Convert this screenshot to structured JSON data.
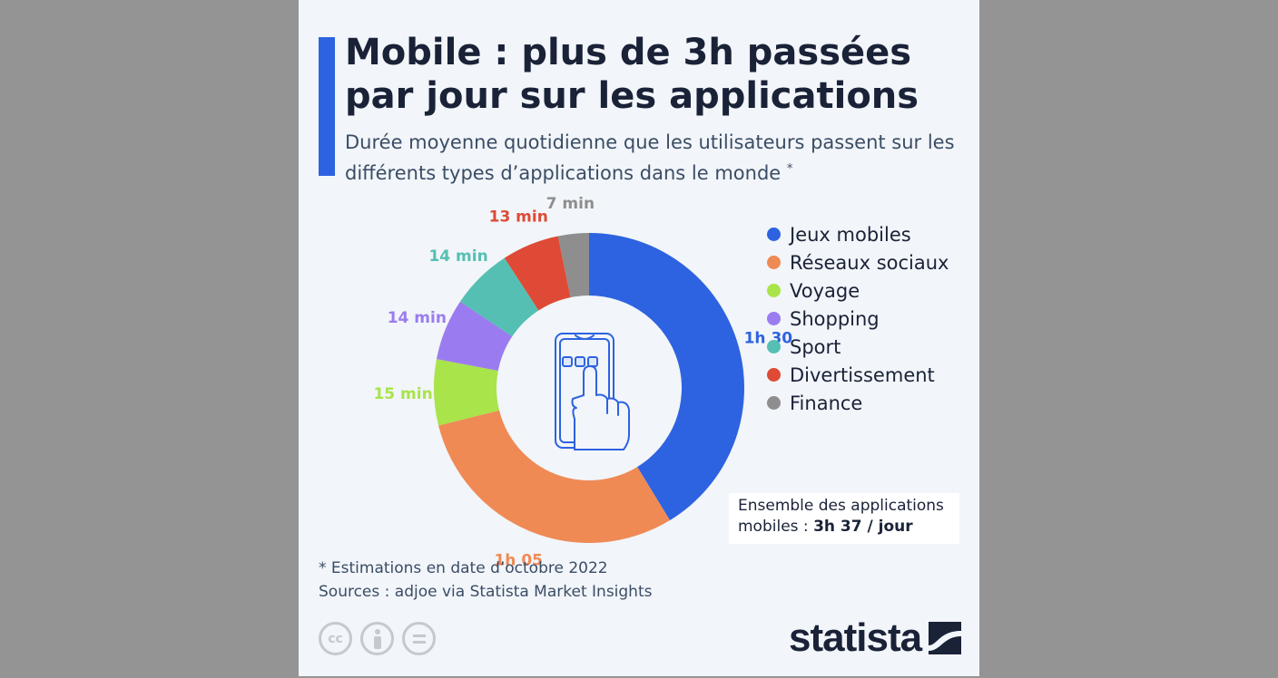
{
  "title": "Mobile : plus de 3h passées par jour sur les applications",
  "subtitle": "Durée moyenne quotidienne que les utilisateurs passent sur les différents types d’applications dans le monde",
  "subtitle_mark": "*",
  "total": {
    "prefix": "Ensemble des applications mobiles : ",
    "value": "3h 37 / jour"
  },
  "footnote": "* Estimations en date d’octobre 2022",
  "source": "Sources : adjoe via Statista Market Insights",
  "brand": "statista",
  "license_icons": [
    "cc-icon",
    "attribution-icon",
    "no-derivatives-icon"
  ],
  "chart_data": {
    "type": "pie",
    "unit": "minutes",
    "slices": [
      {
        "name": "Jeux mobiles",
        "value": 90,
        "label": "1h 30",
        "color": "#2d63e0"
      },
      {
        "name": "Réseaux sociaux",
        "value": 65,
        "label": "1h 05",
        "color": "#ef8a55"
      },
      {
        "name": "Voyage",
        "value": 15,
        "label": "15 min",
        "color": "#a8e44a"
      },
      {
        "name": "Shopping",
        "value": 14,
        "label": "14 min",
        "color": "#9b7cf0"
      },
      {
        "name": "Sport",
        "value": 14,
        "label": "14 min",
        "color": "#55bfb3"
      },
      {
        "name": "Divertissement",
        "value": 13,
        "label": "13 min",
        "color": "#de4a35"
      },
      {
        "name": "Finance",
        "value": 7,
        "label": "7 min",
        "color": "#8e8e8e"
      }
    ],
    "legend_position": "right",
    "center_icon": "smartphone-tap-icon"
  }
}
